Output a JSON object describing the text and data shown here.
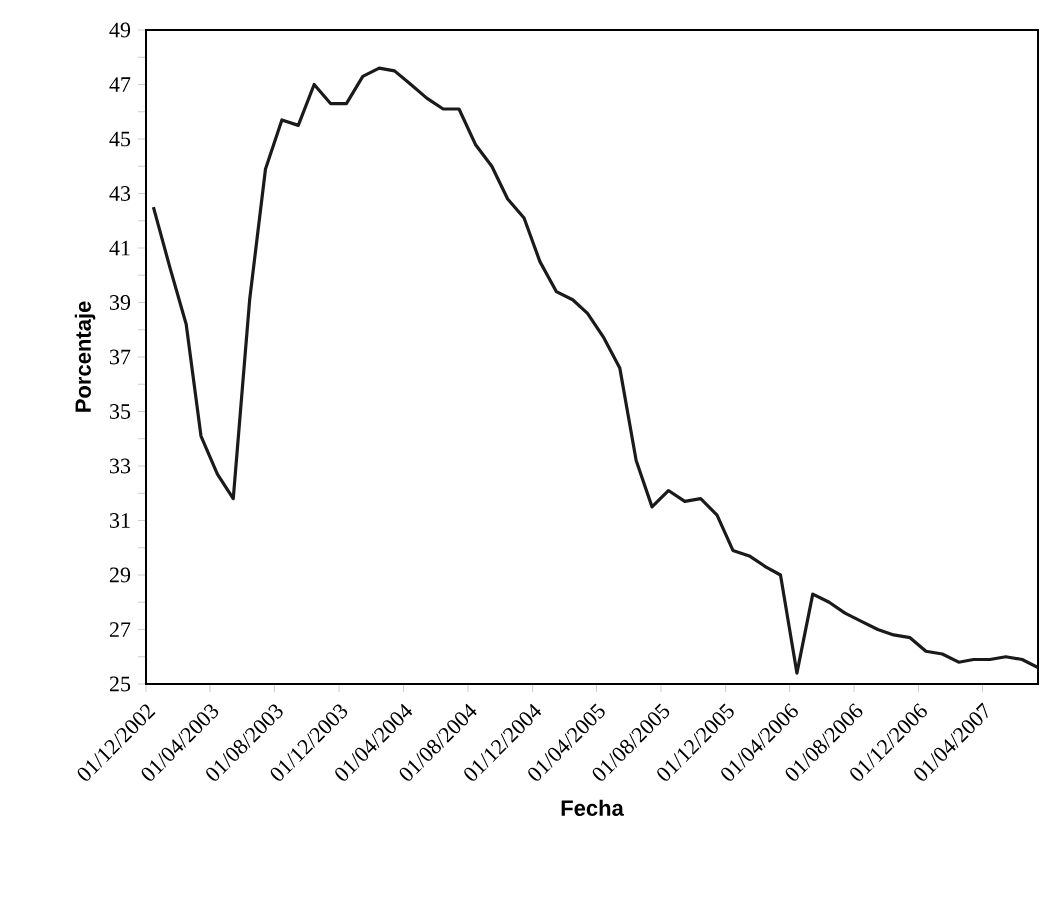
{
  "chart_data": {
    "type": "line",
    "xlabel": "Fecha",
    "ylabel": "Porcentaje",
    "x": [
      "2002-12-15",
      "2003-01-15",
      "2003-02-15",
      "2003-03-15",
      "2003-04-15",
      "2003-05-15",
      "2003-06-15",
      "2003-07-15",
      "2003-08-15",
      "2003-09-15",
      "2003-10-15",
      "2003-11-15",
      "2003-12-15",
      "2004-01-15",
      "2004-02-15",
      "2004-03-15",
      "2004-04-15",
      "2004-05-15",
      "2004-06-15",
      "2004-07-15",
      "2004-08-15",
      "2004-09-15",
      "2004-10-15",
      "2004-11-15",
      "2004-12-15",
      "2005-01-15",
      "2005-02-15",
      "2005-03-15",
      "2005-04-15",
      "2005-05-15",
      "2005-06-15",
      "2005-07-15",
      "2005-08-15",
      "2005-09-15",
      "2005-10-15",
      "2005-11-15",
      "2005-12-15",
      "2006-01-15",
      "2006-02-15",
      "2006-03-15",
      "2006-04-15",
      "2006-05-15",
      "2006-06-15",
      "2006-07-15",
      "2006-08-15",
      "2006-09-15",
      "2006-10-15",
      "2006-11-15",
      "2006-12-15",
      "2007-01-15",
      "2007-02-15",
      "2007-03-15",
      "2007-04-15",
      "2007-05-15",
      "2007-06-15",
      "2007-07-15"
    ],
    "series": [
      {
        "color": "#1a1a1a",
        "values": [
          42.5,
          40.3,
          38.2,
          34.1,
          32.7,
          31.8,
          39.1,
          43.9,
          45.7,
          45.5,
          47.0,
          46.3,
          46.3,
          47.3,
          47.6,
          47.5,
          47.0,
          46.5,
          46.1,
          46.1,
          44.8,
          44.0,
          42.8,
          42.1,
          40.5,
          39.4,
          39.1,
          38.6,
          37.7,
          36.6,
          33.2,
          31.5,
          32.1,
          31.7,
          31.8,
          31.2,
          29.9,
          29.7,
          29.3,
          29.0,
          25.4,
          28.3,
          28.0,
          27.6,
          27.3,
          27.0,
          26.8,
          26.7,
          26.2,
          26.1,
          25.8,
          25.9,
          25.9,
          26.0,
          25.9,
          25.6
        ]
      }
    ],
    "xlim": [
      "2002-12-01",
      "2007-07-15"
    ],
    "ylim": [
      25,
      49
    ],
    "xticks": [
      {
        "value": "2002-12-01",
        "label": "01/12/2002"
      },
      {
        "value": "2003-04-01",
        "label": "01/04/2003"
      },
      {
        "value": "2003-08-01",
        "label": "01/08/2003"
      },
      {
        "value": "2003-12-01",
        "label": "01/12/2003"
      },
      {
        "value": "2004-04-01",
        "label": "01/04/2004"
      },
      {
        "value": "2004-08-01",
        "label": "01/08/2004"
      },
      {
        "value": "2004-12-01",
        "label": "01/12/2004"
      },
      {
        "value": "2005-04-01",
        "label": "01/04/2005"
      },
      {
        "value": "2005-08-01",
        "label": "01/08/2005"
      },
      {
        "value": "2005-12-01",
        "label": "01/12/2005"
      },
      {
        "value": "2006-04-01",
        "label": "01/04/2006"
      },
      {
        "value": "2006-08-01",
        "label": "01/08/2006"
      },
      {
        "value": "2006-12-01",
        "label": "01/12/2006"
      },
      {
        "value": "2007-04-01",
        "label": "01/04/2007"
      }
    ],
    "yticks": [
      25,
      {
        "value": 26,
        "label": null
      },
      27,
      {
        "value": 28,
        "label": null
      },
      29,
      {
        "value": 30,
        "label": null
      },
      31,
      {
        "value": 32,
        "label": null
      },
      33,
      {
        "value": 34,
        "label": null
      },
      35,
      {
        "value": 36,
        "label": null
      },
      37,
      {
        "value": 38,
        "label": null
      },
      39,
      {
        "value": 40,
        "label": null
      },
      41,
      {
        "value": 42,
        "label": null
      },
      43,
      {
        "value": 44,
        "label": null
      },
      45,
      {
        "value": 46,
        "label": null
      },
      47,
      {
        "value": 48,
        "label": null
      },
      49
    ],
    "grid": false,
    "legend": false
  }
}
